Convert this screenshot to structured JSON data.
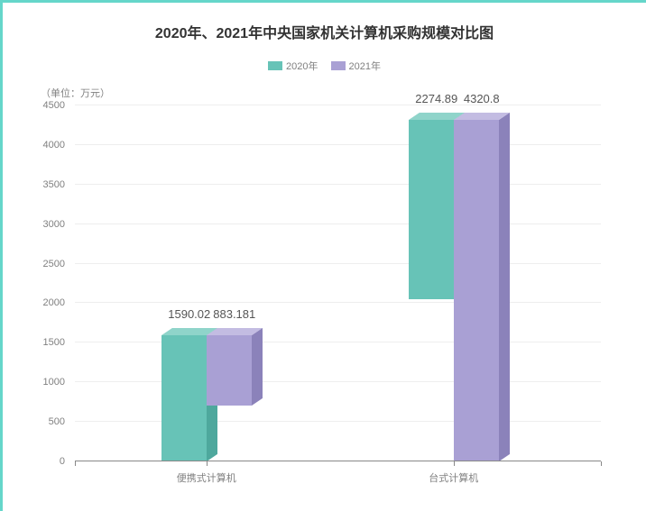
{
  "title": "2020年、2021年中央国家机关计算机采购规模对比图",
  "title_fontsize": 16,
  "unit_label": "（单位：万元）",
  "legend_fontsize": 11,
  "axis_fontsize": 11,
  "value_label_fontsize": 13,
  "background_color": "#ffffff",
  "border_accent_color": "#65d6ca",
  "grid_color": "#eeeeee",
  "axis_color": "#888888",
  "text_color_muted": "#808080",
  "text_color_value": "#555555",
  "series": [
    {
      "name": "2020年",
      "color_front": "#67c3b7",
      "color_top": "#8fd4ca",
      "color_side": "#4ea89d"
    },
    {
      "name": "2021年",
      "color_front": "#a9a0d4",
      "color_top": "#c3bce2",
      "color_side": "#8b82ba"
    }
  ],
  "categories": [
    "便携式计算机",
    "台式计算机"
  ],
  "values": [
    [
      1590.02,
      883.181
    ],
    [
      2274.89,
      4320.8
    ]
  ],
  "value_labels": [
    [
      "1590.02",
      "883.181"
    ],
    [
      "2274.89",
      "4320.8"
    ]
  ],
  "y_axis": {
    "min": 0,
    "max": 4500,
    "step": 500,
    "ticks": [
      0,
      500,
      1000,
      1500,
      2000,
      2500,
      3000,
      3500,
      4000,
      4500
    ]
  },
  "bar": {
    "front_width": 50,
    "depth_x": 12,
    "depth_y": 8,
    "group_gap": 0
  },
  "group_positions_pct": [
    25,
    72
  ]
}
